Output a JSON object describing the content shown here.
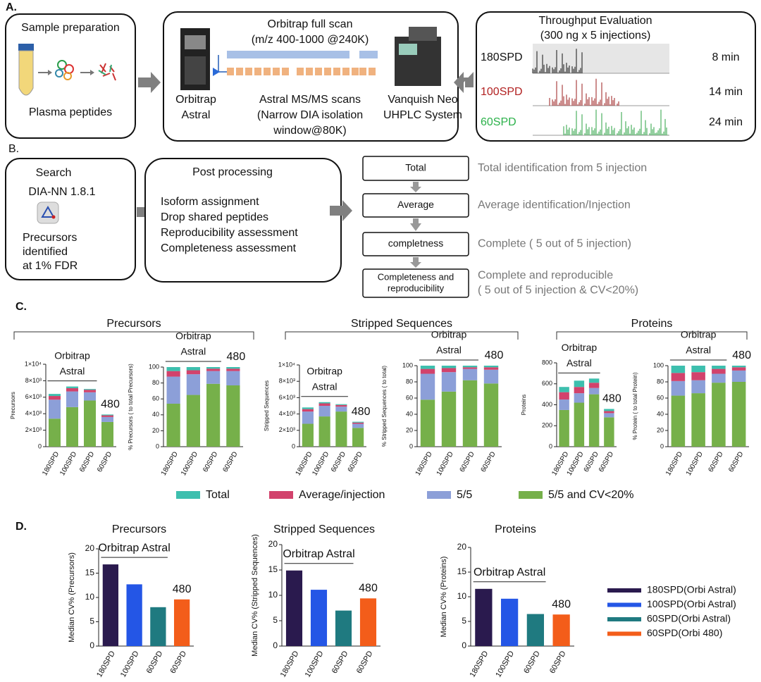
{
  "panel_a": {
    "label": "A.",
    "sample": {
      "title": "Sample preparation",
      "caption": "Plasma peptides"
    },
    "scan": {
      "title": "Orbitrap full scan",
      "subtitle": "(m/z 400-1000 @240K)"
    },
    "orbitrap": [
      "Orbitrap",
      "Astral"
    ],
    "msms": [
      "Astral MS/MS scans",
      "(Narrow DIA isolation",
      "window@80K)"
    ],
    "lc": [
      "Vanquish Neo",
      "UHPLC System"
    ],
    "throughput": {
      "title": "Throughput Evaluation",
      "subtitle": "(300 ng x 5 injections)",
      "rows": [
        {
          "method": "180SPD",
          "time": "8 min"
        },
        {
          "method": "100SPD",
          "time": "14 min"
        },
        {
          "method": "60SPD",
          "time": "24 min"
        }
      ]
    }
  },
  "panel_b": {
    "label": "B.",
    "search": {
      "title": "Search",
      "tool": "DIA-NN 1.8.1",
      "lines": [
        "Precursors",
        "identified",
        "at 1% FDR"
      ]
    },
    "post": {
      "title": "Post processing",
      "items": [
        "Isoform assignment",
        "Drop shared peptides",
        "Reproducibility assessment",
        "Completeness assessment"
      ]
    },
    "steps": [
      {
        "box": [
          "Total"
        ],
        "desc": [
          "Total identification from 5 injection"
        ]
      },
      {
        "box": [
          "Average"
        ],
        "desc": [
          "Average identification/Injection"
        ]
      },
      {
        "box": [
          "completness"
        ],
        "desc": [
          "Complete ( 5 out of 5 injection)"
        ]
      },
      {
        "box": [
          "Completeness and",
          "reproducibility"
        ],
        "desc": [
          "Complete and reproducible",
          "( 5 out of 5 injection & CV<20%)"
        ]
      }
    ]
  },
  "panel_c": {
    "label": "C.",
    "groups": [
      "Precursors",
      "Stripped Sequences",
      "Proteins"
    ],
    "legend": [
      {
        "name": "Total",
        "color": "#3dbfae"
      },
      {
        "name": "Average/injection",
        "color": "#d2426c"
      },
      {
        "name": "5/5",
        "color": "#8c9fd8"
      },
      {
        "name": "5/5 and CV<20%",
        "color": "#76b04a"
      }
    ]
  },
  "panel_d": {
    "label": "D.",
    "legend": [
      {
        "name": "180SPD(Orbi Astral)",
        "color": "#2a1a4e"
      },
      {
        "name": "100SPD(Orbi Astral)",
        "color": "#2456e6"
      },
      {
        "name": "60SPD(Orbi Astral)",
        "color": "#1f7a80"
      },
      {
        "name": "60SPD(Orbi 480)",
        "color": "#f35d1a"
      }
    ]
  },
  "chart_data": [
    {
      "type": "bar",
      "stacked": true,
      "y_label": "Precursors",
      "categories": [
        "180SPD",
        "100SPD",
        "60SPD",
        "60SPD"
      ],
      "series": [
        {
          "values": [
            250,
            200,
            100,
            100
          ]
        },
        {
          "values": [
            450,
            400,
            300,
            200
          ]
        },
        {
          "values": [
            2300,
            1900,
            1000,
            600
          ]
        },
        {
          "values": [
            3400,
            4800,
            5600,
            3000
          ]
        }
      ],
      "ylim": [
        0,
        10000
      ],
      "yticks": [
        0,
        {
          "value": 2000,
          "label": "2×10³"
        },
        {
          "value": 4000,
          "label": "4×10³"
        },
        {
          "value": 6000,
          "label": "6×10³"
        },
        {
          "value": 8000,
          "label": "8×10³"
        },
        {
          "value": 10000,
          "label": "1×10⁴"
        }
      ],
      "annotations": [
        "Orbitrap",
        "Astral",
        "480"
      ]
    },
    {
      "type": "bar",
      "stacked": true,
      "y_label": "% Precursors ( to total Precursors)",
      "categories": [
        "180SPD",
        "100SPD",
        "60SPD",
        "60SPD"
      ],
      "series": [
        {
          "values": [
            5,
            4,
            2,
            2
          ]
        },
        {
          "values": [
            7,
            5,
            3,
            3
          ]
        },
        {
          "values": [
            34,
            26,
            16,
            18
          ]
        },
        {
          "values": [
            54,
            65,
            79,
            77
          ]
        }
      ],
      "ylim": [
        0,
        100
      ],
      "yticks": [
        0,
        20,
        40,
        60,
        80,
        100
      ],
      "annotations": [
        "Orbitrap",
        "Astral",
        "480"
      ]
    },
    {
      "type": "bar",
      "stacked": true,
      "y_label": "Stripped Sequences",
      "categories": [
        "180SPD",
        "100SPD",
        "60SPD",
        "60SPD"
      ],
      "series": [
        {
          "values": [
            200,
            150,
            100,
            100
          ]
        },
        {
          "values": [
            300,
            300,
            200,
            150
          ]
        },
        {
          "values": [
            1500,
            1300,
            600,
            500
          ]
        },
        {
          "values": [
            2800,
            3700,
            4300,
            2300
          ]
        }
      ],
      "ylim": [
        0,
        10000
      ],
      "yticks": [
        0,
        {
          "value": 2000,
          "label": "2×10³"
        },
        {
          "value": 4000,
          "label": "4×10³"
        },
        {
          "value": 6000,
          "label": "6×10³"
        },
        {
          "value": 8000,
          "label": "8×10³"
        },
        {
          "value": 10000,
          "label": "1×10⁴"
        }
      ],
      "annotations": [
        "Orbitrap",
        "Astral",
        "480"
      ]
    },
    {
      "type": "bar",
      "stacked": true,
      "y_label": "% Stripped Sequences ( to total)",
      "categories": [
        "180SPD",
        "100SPD",
        "60SPD",
        "60SPD"
      ],
      "series": [
        {
          "values": [
            4,
            3,
            2,
            2
          ]
        },
        {
          "values": [
            6,
            5,
            2,
            3
          ]
        },
        {
          "values": [
            32,
            24,
            14,
            17
          ]
        },
        {
          "values": [
            58,
            68,
            82,
            78
          ]
        }
      ],
      "ylim": [
        0,
        100
      ],
      "yticks": [
        0,
        20,
        40,
        60,
        80,
        100
      ],
      "annotations": [
        "Orbitrap",
        "Astral",
        "480"
      ]
    },
    {
      "type": "bar",
      "stacked": true,
      "y_label": "Proteins",
      "categories": [
        "180SPD",
        "100SPD",
        "60SPD",
        "60SPD"
      ],
      "series": [
        {
          "values": [
            50,
            60,
            40,
            20
          ]
        },
        {
          "values": [
            70,
            60,
            50,
            20
          ]
        },
        {
          "values": [
            100,
            90,
            60,
            40
          ]
        },
        {
          "values": [
            350,
            420,
            500,
            280
          ]
        }
      ],
      "ylim": [
        0,
        800
      ],
      "yticks": [
        0,
        200,
        400,
        600,
        800
      ],
      "annotations": [
        "Orbitrap",
        "Astral",
        "480"
      ]
    },
    {
      "type": "bar",
      "stacked": true,
      "y_label": "% Protein ( to total Protein)",
      "categories": [
        "180SPD",
        "100SPD",
        "60SPD",
        "60SPD"
      ],
      "series": [
        {
          "values": [
            9,
            8,
            4,
            2
          ]
        },
        {
          "values": [
            10,
            10,
            6,
            4
          ]
        },
        {
          "values": [
            18,
            16,
            11,
            14
          ]
        },
        {
          "values": [
            63,
            66,
            79,
            80
          ]
        }
      ],
      "ylim": [
        0,
        100
      ],
      "yticks": [
        0,
        20,
        40,
        60,
        80,
        100
      ],
      "annotations": [
        "Orbitrap",
        "Astral",
        "480"
      ]
    },
    {
      "type": "bar",
      "title": "Precursors",
      "y_label": "Median CV% (Precursors)",
      "categories": [
        "180SPD",
        "100SPD",
        "60SPD",
        "60SPD"
      ],
      "values": [
        16.8,
        12.7,
        8.0,
        9.6
      ],
      "ylim": [
        0,
        20
      ],
      "yticks": [
        0,
        5,
        10,
        15,
        20
      ],
      "annotations": [
        "Orbitrap Astral",
        "480"
      ]
    },
    {
      "type": "bar",
      "title": "Stripped Sequences",
      "y_label": "Median CV% (Stripped Sequences)",
      "categories": [
        "180SPD",
        "100SPD",
        "60SPD",
        "60SPD"
      ],
      "values": [
        14.9,
        11.1,
        7.0,
        9.4
      ],
      "ylim": [
        0,
        20
      ],
      "yticks": [
        0,
        5,
        10,
        15,
        20
      ],
      "annotations": [
        "Orbitrap Astral",
        "480"
      ]
    },
    {
      "type": "bar",
      "title": "Proteins",
      "y_label": "Median CV% (Proteins)",
      "categories": [
        "180SPD",
        "100SPD",
        "60SPD",
        "60SPD"
      ],
      "values": [
        11.6,
        9.6,
        6.5,
        6.4
      ],
      "ylim": [
        0,
        20
      ],
      "yticks": [
        0,
        5,
        10,
        15,
        20
      ],
      "annotations": [
        "Orbitrap Astral",
        "480"
      ]
    }
  ]
}
